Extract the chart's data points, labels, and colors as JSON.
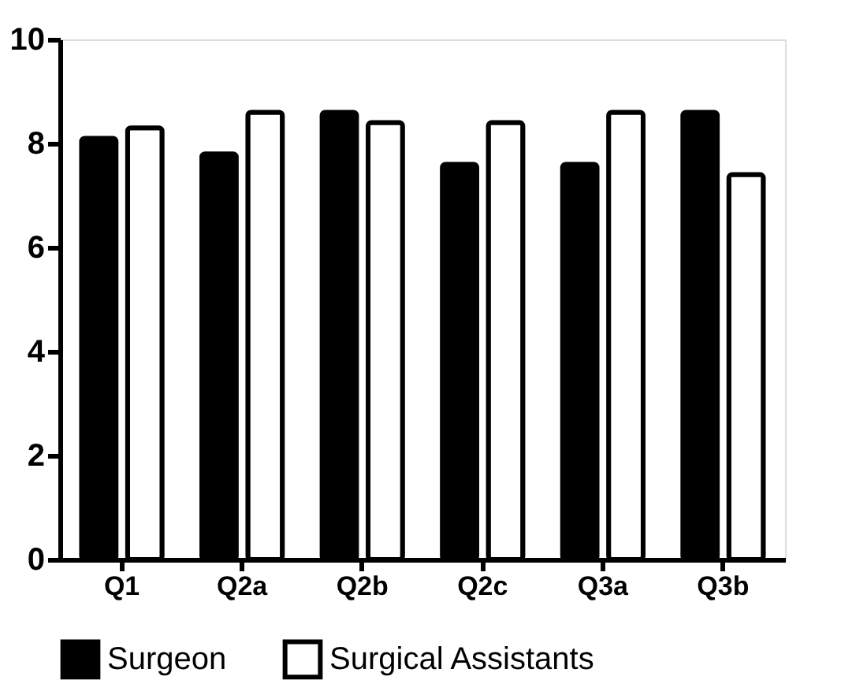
{
  "chart_data": {
    "type": "bar",
    "categories": [
      "Q1",
      "Q2a",
      "Q2b",
      "Q2c",
      "Q3a",
      "Q3b"
    ],
    "series": [
      {
        "name": "Surgeon",
        "color": "#000000",
        "values": [
          8.1,
          7.8,
          8.6,
          7.6,
          7.6,
          8.6
        ]
      },
      {
        "name": "Surgical Assistants",
        "color": "#ffffff",
        "values": [
          8.3,
          8.6,
          8.4,
          8.4,
          8.6,
          7.4
        ]
      }
    ],
    "ylim": [
      0,
      10
    ],
    "yticks": [
      0,
      2,
      4,
      6,
      8,
      10
    ],
    "grid": false,
    "legend": "bottom"
  }
}
